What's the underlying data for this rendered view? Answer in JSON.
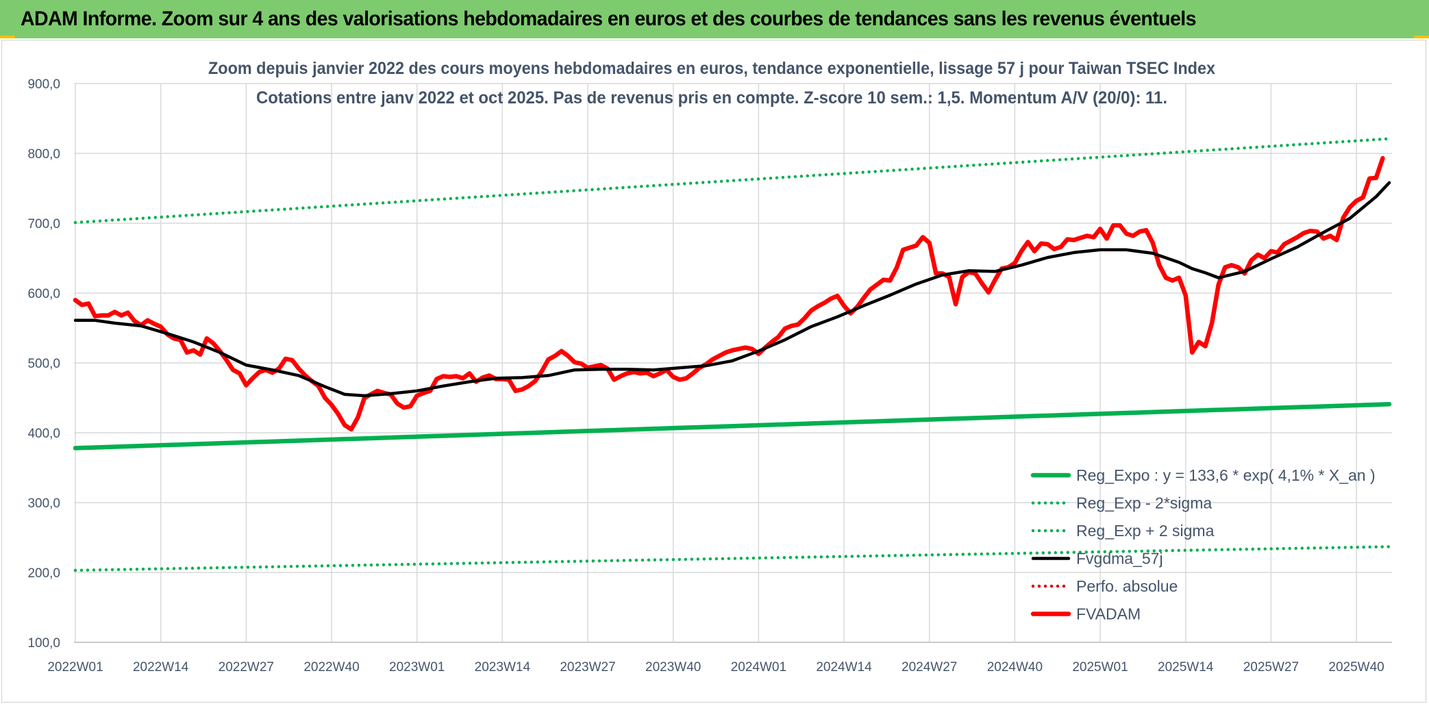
{
  "header": {
    "title": "ADAM Informe. Zoom sur 4 ans des valorisations hebdomadaires en euros et des courbes de tendances sans les revenus éventuels"
  },
  "colors": {
    "header_bg": "#7dcb6e",
    "accent": "#f2c200",
    "regression": "#00b050",
    "smoothing": "#000000",
    "absolute": "#e00000",
    "fvadam": "#ff0000",
    "grid": "#d9d9d9",
    "text": "#44546a"
  },
  "chart_data": {
    "type": "line",
    "title": "Zoom depuis janvier 2022 des cours moyens hebdomadaires en euros, tendance exponentielle, lissage 57 j pour Taiwan TSEC Index",
    "subtitle": "Cotations entre janv 2022 et oct 2025. Pas de revenus pris en compte. Z-score 10 sem.: 1,5. Momentum A/V (20/0): 11.",
    "xlabel": "",
    "ylabel": "",
    "ylim": [
      100,
      900
    ],
    "y_ticks": [
      "100,0",
      "200,0",
      "300,0",
      "400,0",
      "500,0",
      "600,0",
      "700,0",
      "800,0",
      "900,0"
    ],
    "x_ticks": [
      "2022W01",
      "2022W14",
      "2022W27",
      "2022W40",
      "2023W01",
      "2023W14",
      "2023W27",
      "2023W40",
      "2024W01",
      "2024W14",
      "2024W27",
      "2024W40",
      "2025W01",
      "2025W14",
      "2025W27",
      "2025W40"
    ],
    "x_tick_week_index": [
      0,
      13,
      26,
      39,
      52,
      65,
      78,
      91,
      104,
      117,
      130,
      143,
      156,
      169,
      182,
      195
    ],
    "x_range_weeks": [
      0,
      200
    ],
    "grid": true,
    "legend_position": "bottom-right",
    "series": [
      {
        "name": "Reg_Expo : y = 133,6 * exp( 4,1% *  X_an )",
        "style": "solid-thick",
        "color": "#00b050",
        "x": [
          0,
          200
        ],
        "y": [
          378,
          441
        ]
      },
      {
        "name": "Reg_Exp - 2*sigma",
        "style": "dotted",
        "color": "#00b050",
        "x": [
          0,
          200
        ],
        "y": [
          203,
          237
        ]
      },
      {
        "name": "Reg_Exp + 2 sigma",
        "style": "dotted",
        "color": "#00b050",
        "x": [
          0,
          200
        ],
        "y": [
          701,
          821
        ]
      },
      {
        "name": "Fvgdma_57j",
        "style": "solid",
        "color": "#000000",
        "x": [
          0,
          3,
          6,
          10,
          14,
          18,
          22,
          26,
          30,
          34,
          38,
          41,
          44,
          48,
          52,
          56,
          60,
          64,
          68,
          72,
          76,
          80,
          84,
          88,
          92,
          96,
          100,
          104,
          108,
          112,
          116,
          120,
          124,
          128,
          132,
          136,
          140,
          144,
          148,
          152,
          156,
          160,
          164,
          168,
          170,
          172,
          174,
          178,
          182,
          186,
          190,
          194,
          198,
          200
        ],
        "y": [
          561,
          561,
          557,
          553,
          542,
          530,
          515,
          497,
          490,
          482,
          466,
          455,
          453,
          456,
          460,
          467,
          473,
          478,
          479,
          482,
          490,
          491,
          491,
          490,
          493,
          496,
          503,
          517,
          533,
          552,
          566,
          582,
          597,
          613,
          626,
          632,
          631,
          640,
          651,
          658,
          662,
          662,
          657,
          644,
          635,
          629,
          622,
          631,
          649,
          666,
          687,
          707,
          738,
          758
        ]
      },
      {
        "name": "Perfo. absolue",
        "style": "dotted",
        "color": "#e00000",
        "x": [],
        "y": []
      },
      {
        "name": "FVADAM",
        "style": "solid-thick",
        "color": "#ff0000",
        "x": [
          0,
          1,
          2,
          3,
          4,
          5,
          6,
          7,
          8,
          9,
          10,
          11,
          12,
          13,
          14,
          15,
          16,
          17,
          18,
          19,
          20,
          21,
          22,
          23,
          24,
          25,
          26,
          27,
          28,
          29,
          30,
          31,
          32,
          33,
          34,
          35,
          36,
          37,
          38,
          39,
          40,
          41,
          42,
          43,
          44,
          45,
          46,
          47,
          48,
          49,
          50,
          51,
          52,
          53,
          54,
          55,
          56,
          57,
          58,
          59,
          60,
          61,
          62,
          63,
          64,
          65,
          66,
          67,
          68,
          69,
          70,
          71,
          72,
          73,
          74,
          75,
          76,
          77,
          78,
          79,
          80,
          81,
          82,
          83,
          84,
          85,
          86,
          87,
          88,
          89,
          90,
          91,
          92,
          93,
          94,
          95,
          96,
          97,
          98,
          99,
          100,
          101,
          102,
          103,
          104,
          105,
          106,
          107,
          108,
          109,
          110,
          111,
          112,
          113,
          114,
          115,
          116,
          117,
          118,
          119,
          120,
          121,
          122,
          123,
          124,
          125,
          126,
          127,
          128,
          129,
          130,
          131,
          132,
          133,
          134,
          135,
          136,
          137,
          138,
          139,
          140,
          141,
          142,
          143,
          144,
          145,
          146,
          147,
          148,
          149,
          150,
          151,
          152,
          153,
          154,
          155,
          156,
          157,
          158,
          159,
          160,
          161,
          162,
          163,
          164,
          165,
          166,
          167,
          168,
          169,
          170,
          171,
          172,
          173,
          174,
          175,
          176,
          177,
          178,
          179,
          180,
          181,
          182,
          183,
          184,
          185,
          186,
          187,
          188,
          189,
          190,
          191,
          192,
          193,
          194,
          195,
          196,
          197,
          198,
          199
        ],
        "y": [
          590,
          583,
          585,
          567,
          568,
          568,
          573,
          568,
          572,
          560,
          554,
          561,
          556,
          552,
          541,
          535,
          533,
          515,
          518,
          512,
          535,
          528,
          517,
          504,
          490,
          485,
          468,
          478,
          487,
          490,
          486,
          492,
          506,
          504,
          492,
          482,
          474,
          467,
          450,
          440,
          427,
          411,
          405,
          422,
          450,
          455,
          460,
          457,
          455,
          442,
          436,
          438,
          453,
          457,
          460,
          477,
          481,
          480,
          481,
          478,
          485,
          473,
          479,
          482,
          477,
          477,
          476,
          460,
          462,
          467,
          474,
          488,
          505,
          510,
          517,
          510,
          501,
          499,
          493,
          495,
          497,
          492,
          476,
          481,
          485,
          487,
          485,
          486,
          481,
          485,
          490,
          480,
          476,
          478,
          485,
          493,
          498,
          505,
          510,
          515,
          518,
          520,
          522,
          520,
          513,
          522,
          530,
          537,
          549,
          553,
          555,
          564,
          575,
          581,
          586,
          592,
          596,
          582,
          571,
          580,
          593,
          605,
          612,
          619,
          618,
          636,
          662,
          665,
          668,
          680,
          672,
          628,
          628,
          623,
          584,
          623,
          630,
          628,
          614,
          601,
          619,
          635,
          637,
          643,
          660,
          673,
          660,
          671,
          670,
          663,
          666,
          677,
          676,
          679,
          682,
          680,
          692,
          678,
          697,
          697,
          685,
          682,
          688,
          690,
          672,
          640,
          622,
          618,
          622,
          597,
          515,
          530,
          524,
          557,
          612,
          637,
          640,
          637,
          628,
          647,
          655,
          650,
          660,
          658,
          670,
          675,
          680,
          686,
          689,
          688,
          678,
          682,
          676,
          708,
          723,
          732,
          737,
          764,
          765,
          793
        ]
      }
    ]
  }
}
